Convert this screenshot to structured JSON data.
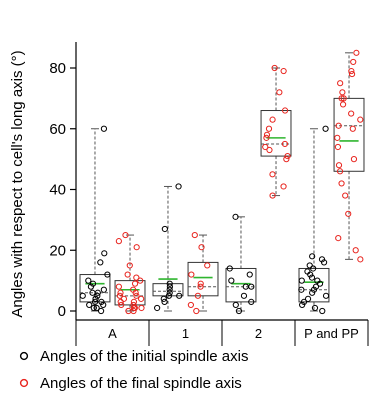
{
  "chart_data": {
    "type": "box",
    "ylabel": "Angles  with respect  to cell's long axis (°)",
    "ylim": [
      -2,
      90
    ],
    "yticks": [
      0,
      20,
      40,
      60,
      80
    ],
    "grid": false,
    "legend_position": "bottom",
    "categories": [
      "A",
      "1",
      "2",
      "P and PP"
    ],
    "series": [
      {
        "name": "Angles of the initial spindle axis",
        "color": "#000000",
        "groups": [
          {
            "category": "A",
            "box": {
              "q1": 3,
              "median": 6,
              "q3": 12
            },
            "whiskers": [
              0,
              60
            ],
            "mean": 9,
            "points": [
              0,
              1,
              1,
              2,
              2,
              3,
              3,
              4,
              4,
              5,
              5,
              6,
              6,
              7,
              8,
              9,
              10,
              12,
              16,
              19,
              60
            ]
          },
          {
            "category": "1",
            "box": {
              "q1": 5,
              "median": 6.5,
              "q3": 9
            },
            "whiskers": [
              0,
              41
            ],
            "mean": 10.5,
            "points": [
              1,
              3,
              4,
              5,
              5,
              6,
              7,
              8,
              9,
              27,
              41
            ]
          },
          {
            "category": "2",
            "box": {
              "q1": 3,
              "median": 8,
              "q3": 14
            },
            "whiskers": [
              0,
              31
            ],
            "mean": 9,
            "points": [
              0,
              2,
              3,
              5,
              8,
              8,
              10,
              12,
              14,
              31
            ]
          },
          {
            "category": "P and PP",
            "box": {
              "q1": 3,
              "median": 7,
              "q3": 14
            },
            "whiskers": [
              0,
              60
            ],
            "mean": 9.5,
            "points": [
              0,
              1,
              2,
              3,
              4,
              5,
              6,
              7,
              7,
              8,
              9,
              10,
              10,
              11,
              12,
              13,
              14,
              15,
              16,
              17,
              18,
              60
            ]
          }
        ]
      },
      {
        "name": "Angles of the final spindle axis",
        "color": "#e8251f",
        "groups": [
          {
            "category": "A",
            "box": {
              "q1": 2,
              "median": 5,
              "q3": 10
            },
            "whiskers": [
              0,
              25
            ],
            "mean": 7,
            "points": [
              0,
              0,
              1,
              1,
              1,
              2,
              2,
              3,
              3,
              4,
              4,
              5,
              5,
              6,
              6,
              7,
              8,
              9,
              10,
              11,
              12,
              15,
              21,
              23,
              25
            ]
          },
          {
            "category": "1",
            "box": {
              "q1": 5,
              "median": 8,
              "q3": 16
            },
            "whiskers": [
              0,
              25
            ],
            "mean": 11,
            "points": [
              0,
              2,
              5,
              8,
              9,
              12,
              15,
              21,
              25
            ]
          },
          {
            "category": "2",
            "box": {
              "q1": 51,
              "median": 55,
              "q3": 66
            },
            "whiskers": [
              38,
              80
            ],
            "mean": 57,
            "points": [
              38,
              41,
              45,
              50,
              51,
              53,
              54,
              55,
              57,
              58,
              60,
              63,
              66,
              72,
              79,
              80
            ]
          },
          {
            "category": "P and PP",
            "box": {
              "q1": 46,
              "median": 61,
              "q3": 70
            },
            "whiskers": [
              17,
              85
            ],
            "mean": 56,
            "points": [
              17,
              20,
              24,
              32,
              38,
              42,
              46,
              48,
              50,
              54,
              57,
              60,
              61,
              63,
              65,
              68,
              70,
              70,
              72,
              75,
              78,
              79,
              82,
              85
            ]
          }
        ]
      }
    ]
  }
}
